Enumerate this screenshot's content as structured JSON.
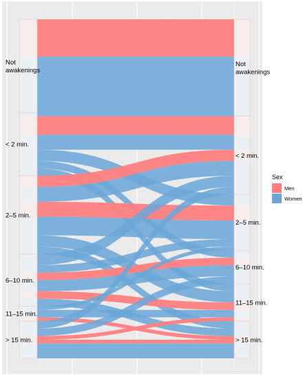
{
  "chart_data": {
    "type": "alluvial",
    "title": "",
    "xlabel": "",
    "ylabel": "",
    "axes": [
      {
        "name": "",
        "strata": [
          "Not awakenings",
          "< 2 min.",
          "2–5 min.",
          "6–10 min.",
          "11–15 min.",
          "> 15 min."
        ]
      },
      {
        "name": "",
        "strata": [
          "Not awakenings",
          "< 2 min.",
          "2–5 min.",
          "6–10 min.",
          "11–15 min.",
          "> 15 min."
        ]
      }
    ],
    "left_labels": [
      "Not\nawakenings",
      "< 2 min.",
      "2–5 min.",
      "6–10 min.",
      "11–15 min.",
      "> 15 min."
    ],
    "right_labels": [
      "Not\nawakenings",
      "< 2 min.",
      "2–5 min.",
      "6–10 min.",
      "11–15 min.",
      "> 15 min."
    ],
    "approx_stratum_share": {
      "left": [
        0.25,
        0.21,
        0.24,
        0.14,
        0.06,
        0.1
      ],
      "right": [
        0.26,
        0.19,
        0.23,
        0.12,
        0.1,
        0.1
      ]
    },
    "flows": [
      {
        "from": "Not awakenings",
        "to": "Not awakenings",
        "sex": "Men",
        "value": 10
      },
      {
        "from": "Not awakenings",
        "to": "Not awakenings",
        "sex": "Women",
        "value": 15
      },
      {
        "from": "< 2 min.",
        "to": "< 2 min.",
        "sex": "Men",
        "value": 5
      },
      {
        "from": "< 2 min.",
        "to": "< 2 min.",
        "sex": "Women",
        "value": 4
      },
      {
        "from": "< 2 min.",
        "to": "2–5 min.",
        "sex": "Women",
        "value": 3
      },
      {
        "from": "< 2 min.",
        "to": "6–10 min.",
        "sex": "Women",
        "value": 2
      },
      {
        "from": "< 2 min.",
        "to": "Not awakenings",
        "sex": "Women",
        "value": 1
      },
      {
        "from": "< 2 min.",
        "to": "11–15 min.",
        "sex": "Women",
        "value": 2
      },
      {
        "from": "2–5 min.",
        "to": "2–5 min.",
        "sex": "Men",
        "value": 4
      },
      {
        "from": "2–5 min.",
        "to": "2–5 min.",
        "sex": "Women",
        "value": 5
      },
      {
        "from": "2–5 min.",
        "to": "< 2 min.",
        "sex": "Men",
        "value": 3
      },
      {
        "from": "2–5 min.",
        "to": "< 2 min.",
        "sex": "Women",
        "value": 4
      },
      {
        "from": "2–5 min.",
        "to": "11–15 min.",
        "sex": "Women",
        "value": 3
      },
      {
        "from": "2–5 min.",
        "to": "> 15 min.",
        "sex": "Women",
        "value": 2
      },
      {
        "from": "6–10 min.",
        "to": "6–10 min.",
        "sex": "Men",
        "value": 2
      },
      {
        "from": "6–10 min.",
        "to": "6–10 min.",
        "sex": "Women",
        "value": 3
      },
      {
        "from": "6–10 min.",
        "to": "< 2 min.",
        "sex": "Women",
        "value": 3
      },
      {
        "from": "6–10 min.",
        "to": "2–5 min.",
        "sex": "Women",
        "value": 2
      },
      {
        "from": "6–10 min.",
        "to": "11–15 min.",
        "sex": "Men",
        "value": 2
      },
      {
        "from": "6–10 min.",
        "to": "> 15 min.",
        "sex": "Women",
        "value": 2
      },
      {
        "from": "11–15 min.",
        "to": "11–15 min.",
        "sex": "Women",
        "value": 2
      },
      {
        "from": "11–15 min.",
        "to": "2–5 min.",
        "sex": "Women",
        "value": 1
      },
      {
        "from": "11–15 min.",
        "to": "> 15 min.",
        "sex": "Men",
        "value": 1
      },
      {
        "from": "> 15 min.",
        "to": "> 15 min.",
        "sex": "Women",
        "value": 4
      },
      {
        "from": "> 15 min.",
        "to": "> 15 min.",
        "sex": "Men",
        "value": 1
      },
      {
        "from": "> 15 min.",
        "to": "6–10 min.",
        "sex": "Women",
        "value": 2
      },
      {
        "from": "> 15 min.",
        "to": "< 2 min.",
        "sex": "Women",
        "value": 2
      },
      {
        "from": "> 15 min.",
        "to": "11–15 min.",
        "sex": "Men",
        "value": 1
      }
    ],
    "legend": {
      "title": "Sex",
      "placement": "right",
      "entries": [
        {
          "label": "Men",
          "color": "#f8766d"
        },
        {
          "label": "Women",
          "color": "#619cff"
        }
      ]
    },
    "grid": true,
    "colors": {
      "Men": "#ff7f7f",
      "Women": "#6aa7d8",
      "panel": "#ebebeb"
    }
  }
}
